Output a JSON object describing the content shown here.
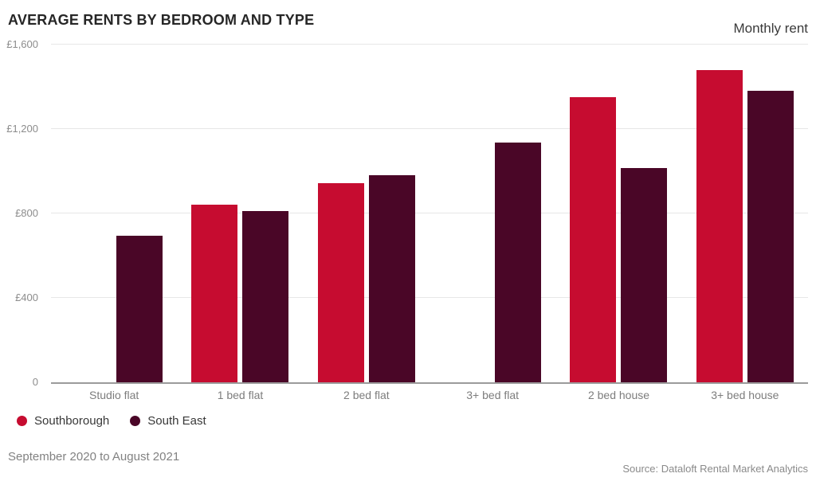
{
  "header": {
    "title": "AVERAGE RENTS BY BEDROOM AND TYPE",
    "right_label": "Monthly rent"
  },
  "chart_data": {
    "type": "bar",
    "title": "AVERAGE RENTS BY BEDROOM AND TYPE",
    "ylabel": "Monthly rent",
    "xlabel": "",
    "categories": [
      "Studio flat",
      "1 bed flat",
      "2 bed flat",
      "3+ bed flat",
      "2 bed house",
      "3+ bed house"
    ],
    "series": [
      {
        "name": "Southborough",
        "color": "#C60C30",
        "values": [
          null,
          840,
          945,
          null,
          1350,
          1480
        ]
      },
      {
        "name": "South East",
        "color": "#4A0627",
        "values": [
          695,
          810,
          980,
          1135,
          1015,
          1380
        ]
      }
    ],
    "ylim": [
      0,
      1600
    ],
    "yticks": [
      {
        "value": 1600,
        "label": "£1,600"
      },
      {
        "value": 1200,
        "label": "£1,200"
      },
      {
        "value": 800,
        "label": "£800"
      },
      {
        "value": 400,
        "label": "£400"
      },
      {
        "value": 0,
        "label": "0"
      }
    ],
    "grid": true,
    "legend_position": "bottom-left"
  },
  "colors": {
    "gridline": "#e7e7e7",
    "axis_line": "#9b9b9b"
  },
  "footer": {
    "period": "September 2020 to August 2021",
    "source": "Source: Dataloft Rental Market Analytics"
  }
}
